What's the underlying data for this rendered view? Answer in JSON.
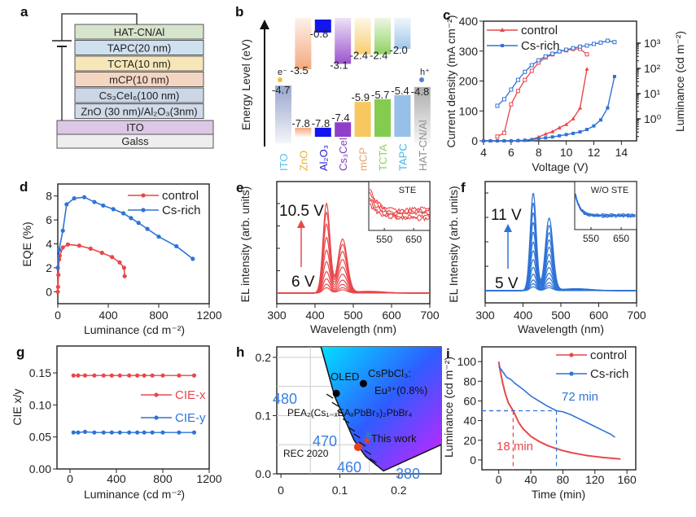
{
  "panel_labels": {
    "a": "a",
    "b": "b",
    "c": "c",
    "d": "d",
    "e": "e",
    "f": "f",
    "g": "g",
    "h": "h",
    "i": "i"
  },
  "colors": {
    "control": "#e8474a",
    "cs_rich": "#2f73d6",
    "wavelength_label": "#3a7fe0"
  },
  "device_stack": {
    "layers": [
      {
        "label": "HAT-CN/Al",
        "color": "#d7e4cc"
      },
      {
        "label": "TAPC(20 nm)",
        "color": "#cfe0ef"
      },
      {
        "label": "TCTA(10 nm)",
        "color": "#f6e6b8"
      },
      {
        "label": "mCP(10 nm)",
        "color": "#f4d5c2"
      },
      {
        "label": "Cs₃CeI₆(100 nm)",
        "color": "#cbd6e6"
      },
      {
        "label": "ZnO (30 nm)/Al₂O₃(3nm)",
        "color": "#d0dae8"
      }
    ],
    "substrate": [
      {
        "label": "ITO",
        "color": "#dcc8e6"
      },
      {
        "label": "Galss",
        "color": "#eeeeee"
      }
    ]
  },
  "energy_diagram": {
    "axis_title": "Energy Level (eV)",
    "electron_label": "e⁻",
    "hole_label": "h⁺",
    "materials": [
      {
        "name": "ITO",
        "lumo": null,
        "homo": -4.7,
        "homo_label": "-4.7",
        "bar_color": "#8d9cc8",
        "label_color": "#5bc0e8"
      },
      {
        "name": "ZnO",
        "lumo": -3.5,
        "lumo_label": "-3.5",
        "homo": -7.8,
        "homo_label": "-7.8",
        "bar_color": "#f2a070",
        "label_color": "#f0b020"
      },
      {
        "name": "Al₂O₃",
        "lumo": -0.8,
        "lumo_label": "-0.8",
        "homo": -7.8,
        "homo_label": "-7.8",
        "bar_color": "#1414ee",
        "label_color": "#2020d0"
      },
      {
        "name": "Cs₃CeI₆",
        "lumo": -3.1,
        "lumo_label": "-3.1",
        "homo": -7.4,
        "homo_label": "-7.4",
        "bar_color": "#9040c8",
        "label_color": "#8040c0"
      },
      {
        "name": "mCP",
        "lumo": -2.4,
        "lumo_label": "-2.4",
        "homo": -5.9,
        "homo_label": "-5.9",
        "bar_color": "#f8c860",
        "label_color": "#f0a060"
      },
      {
        "name": "TCTA",
        "lumo": -2.4,
        "lumo_label": "-2.4",
        "homo": -5.7,
        "homo_label": "-5.7",
        "bar_color": "#84cc50",
        "label_color": "#90d060"
      },
      {
        "name": "TAPC",
        "lumo": -2.0,
        "lumo_label": "-2.0",
        "homo": -5.4,
        "homo_label": "-5.4",
        "bar_color": "#96c0e6",
        "label_color": "#40b8e8"
      },
      {
        "name": "HAT-CN/Al",
        "lumo": null,
        "homo": -4.8,
        "homo_label": "-4.8",
        "bar_color": "#a4a4a4",
        "label_color": "#909090"
      }
    ]
  },
  "chart_data": [
    {
      "panel": "c",
      "type": "line",
      "xlabel": "Voltage (V)",
      "ylabel": "Current density (mA cm⁻²)",
      "y2label": "Luminance (cd m⁻²)",
      "xlim": [
        4,
        15.1
      ],
      "ylim": [
        0,
        400
      ],
      "y2lim_log10": [
        -0.87,
        3.87
      ],
      "y2scale": "log",
      "xticks": [
        4,
        6,
        8,
        10,
        12,
        14
      ],
      "yticks": [
        0,
        100,
        200,
        300,
        400
      ],
      "y2ticks": [
        "10⁰",
        "10¹",
        "10²",
        "10³"
      ],
      "legend": {
        "position": "top-left",
        "entries": [
          "control",
          "Cs-rich"
        ]
      },
      "series": [
        {
          "name": "control",
          "axis": "left",
          "marker": "triangle",
          "x": [
            4,
            4.5,
            5,
            5.5,
            6,
            6.5,
            7,
            7.5,
            8,
            8.5,
            9,
            9.5,
            10,
            10.5,
            11,
            11.5
          ],
          "y": [
            0,
            0,
            0,
            0,
            0,
            1,
            2,
            5,
            13,
            23,
            31,
            44,
            55,
            74,
            110,
            240
          ]
        },
        {
          "name": "Cs-rich",
          "axis": "left",
          "marker": "square",
          "x": [
            4,
            4.5,
            5,
            5.5,
            6,
            6.5,
            7,
            7.5,
            8,
            8.5,
            9,
            9.5,
            10,
            10.5,
            11,
            11.5,
            12,
            12.5,
            13,
            13.5
          ],
          "y": [
            0,
            0,
            0,
            0,
            0,
            1,
            2,
            4,
            8,
            10,
            13,
            17,
            21,
            25,
            30,
            38,
            50,
            70,
            110,
            215
          ]
        },
        {
          "name": "control",
          "axis": "right",
          "marker": "open-triangle",
          "x": [
            5,
            5.5,
            6,
            6.5,
            7,
            7.5,
            8,
            8.5,
            9,
            9.5,
            10,
            10.5,
            11,
            11.5
          ],
          "y": [
            0.2,
            0.28,
            3.8,
            12.7,
            35,
            80,
            170,
            270,
            360,
            470,
            520,
            590,
            590,
            360
          ]
        },
        {
          "name": "Cs-rich",
          "axis": "right",
          "marker": "open-square",
          "x": [
            5,
            5.5,
            6,
            6.5,
            7,
            7.5,
            8,
            8.5,
            9,
            9.5,
            10,
            10.5,
            11,
            11.5,
            12,
            12.5,
            13,
            13.5
          ],
          "y": [
            3.3,
            6,
            14.5,
            35,
            73,
            134,
            210,
            300,
            380,
            470,
            550,
            630,
            730,
            800,
            930,
            1050,
            1250,
            1100
          ]
        }
      ]
    },
    {
      "panel": "d",
      "type": "line",
      "xlabel": "Luminance (cd m⁻²)",
      "ylabel": "EQE (%)",
      "xlim": [
        0,
        1200
      ],
      "ylim": [
        -1,
        9
      ],
      "xticks": [
        0,
        400,
        800,
        1200
      ],
      "yticks": [
        0,
        2,
        4,
        6,
        8
      ],
      "legend": {
        "position": "top-right",
        "entries": [
          "control",
          "Cs-rich"
        ]
      },
      "series": [
        {
          "name": "control",
          "x": [
            0,
            2,
            5,
            10,
            15,
            40,
            80,
            170,
            260,
            350,
            430,
            490,
            525,
            530
          ],
          "y": [
            0,
            0.4,
            1.4,
            2.7,
            3.0,
            3.7,
            3.95,
            3.85,
            3.6,
            3.25,
            2.9,
            2.45,
            2.0,
            1.3
          ]
        },
        {
          "name": "Cs-rich",
          "x": [
            0,
            10,
            40,
            70,
            130,
            210,
            290,
            360,
            440,
            520,
            580,
            640,
            710,
            800,
            940,
            1070
          ],
          "y": [
            2,
            3.5,
            5.1,
            7.3,
            7.8,
            7.9,
            7.5,
            7.2,
            6.9,
            6.55,
            6.15,
            5.75,
            5.25,
            4.6,
            3.8,
            2.75
          ]
        }
      ]
    },
    {
      "panel": "e",
      "type": "line",
      "xlabel": "Wavelength (nm)",
      "ylabel": "EL intensity (arb. units)",
      "xlim": [
        300,
        700
      ],
      "xticks": [
        300,
        400,
        500,
        600,
        700
      ],
      "voltage_low": "6 V",
      "voltage_high": "10.5 V",
      "peak_wavelengths_nm": [
        430,
        472
      ],
      "second_peak_ratio": 0.6,
      "curve_peak_heights": [
        0.06,
        0.1,
        0.16,
        0.24,
        0.35,
        0.48,
        0.62,
        0.77,
        0.9,
        1.0
      ],
      "inset": {
        "title": "STE",
        "xticks": [
          550,
          650
        ],
        "xlim": [
          497,
          705
        ]
      }
    },
    {
      "panel": "f",
      "type": "line",
      "xlabel": "Wavelength (nm)",
      "ylabel": "EL Intensity (arb. units)",
      "xlim": [
        300,
        700
      ],
      "xticks": [
        300,
        400,
        500,
        600,
        700
      ],
      "voltage_low": "5 V",
      "voltage_high": "11 V",
      "peak_wavelengths_nm": [
        427,
        469
      ],
      "second_peak_ratio": 0.74,
      "curve_peak_heights": [
        0.04,
        0.07,
        0.11,
        0.17,
        0.24,
        0.32,
        0.41,
        0.5,
        0.6,
        0.7,
        0.8,
        0.9,
        1.0
      ],
      "inset": {
        "title": "W/O STE",
        "xticks": [
          550,
          650
        ],
        "xlim": [
          496,
          701
        ]
      }
    },
    {
      "panel": "g",
      "type": "line",
      "xlabel": "Luminance (cd m⁻²)",
      "ylabel": "CIE x/y",
      "xlim": [
        -112,
        1200
      ],
      "ylim": [
        0,
        0.192
      ],
      "xticks": [
        0,
        400,
        800,
        1200
      ],
      "yticks": [
        "0.00",
        "0.05",
        "0.10",
        "0.15"
      ],
      "legend": {
        "position": "right",
        "entries": [
          "CIE-x",
          "CIE-y"
        ]
      },
      "series": [
        {
          "name": "CIE-x",
          "x": [
            30,
            70,
            130,
            210,
            290,
            360,
            430,
            510,
            580,
            640,
            710,
            800,
            940,
            1070
          ],
          "y": [
            0.146,
            0.146,
            0.146,
            0.146,
            0.146,
            0.146,
            0.146,
            0.146,
            0.146,
            0.146,
            0.146,
            0.146,
            0.146,
            0.146
          ]
        },
        {
          "name": "CIE-y",
          "x": [
            30,
            70,
            130,
            210,
            290,
            360,
            430,
            510,
            580,
            640,
            710,
            800,
            940,
            1070
          ],
          "y": [
            0.057,
            0.057,
            0.058,
            0.057,
            0.057,
            0.057,
            0.057,
            0.057,
            0.057,
            0.057,
            0.057,
            0.057,
            0.057,
            0.057
          ]
        }
      ]
    },
    {
      "panel": "h",
      "type": "scatter",
      "xlim": [
        -0.007,
        0.272
      ],
      "ylim": [
        0,
        0.218
      ],
      "xticks": [
        "0",
        "0.1",
        "0.2"
      ],
      "yticks": [
        "0.0",
        "0.1",
        "0.2"
      ],
      "spectral_locus": [
        {
          "nm": "380",
          "x": 0.1741,
          "y": 0.005
        },
        {
          "nm": "460",
          "x": 0.144,
          "y": 0.0297
        },
        {
          "nm": "470",
          "x": 0.1241,
          "y": 0.0578
        },
        {
          "nm": "480",
          "x": 0.0913,
          "y": 0.1327
        },
        {
          "nm": "490",
          "x": 0.0454,
          "y": 0.295
        }
      ],
      "locus_labels": [
        "480",
        "470",
        "460",
        "380"
      ],
      "points": [
        {
          "label": "OLED",
          "x": 0.094,
          "y": 0.138,
          "color": "#000000"
        },
        {
          "label": "CsPbCl₃:",
          "label2": "Eu³⁺(0.8%)",
          "x": 0.14,
          "y": 0.155,
          "color": "#000000"
        },
        {
          "label": "PEA₂(Cs₁₋ₓEAₓPbBr₃)₂PbBr₄",
          "x": 0.146,
          "y": 0.066,
          "color": "#2f73d6"
        },
        {
          "label": "This work",
          "x": 0.146,
          "y": 0.057,
          "color": "#e8401a",
          "marker": "star"
        },
        {
          "label": "REC 2020",
          "x": 0.131,
          "y": 0.046,
          "color": "#e8401a"
        }
      ]
    },
    {
      "panel": "i",
      "type": "line",
      "xlabel": "Time (min)",
      "ylabel": "Luminance (cd m⁻²)",
      "xlim": [
        -21,
        171
      ],
      "ylim": [
        -10,
        115
      ],
      "xticks": [
        0,
        40,
        80,
        120,
        160
      ],
      "yticks": [
        0,
        20,
        40,
        60,
        80,
        100
      ],
      "legend": {
        "position": "top-right",
        "entries": [
          "control",
          "Cs-rich"
        ]
      },
      "annotations": [
        {
          "text": "18 min",
          "t50": 18,
          "color": "#e8474a"
        },
        {
          "text": "72 min",
          "t50": 72,
          "color": "#2f73d6"
        }
      ],
      "half_level": 50,
      "series": [
        {
          "name": "control",
          "x": [
            0,
            2,
            5,
            8,
            12,
            15,
            18,
            25,
            30,
            40,
            50,
            60,
            70,
            80,
            90,
            100,
            110,
            120,
            130,
            140,
            152
          ],
          "y": [
            100,
            90,
            78,
            68,
            58,
            54,
            50,
            38,
            32,
            24,
            19,
            15,
            12,
            9.5,
            7.5,
            6,
            4.5,
            3.5,
            2.5,
            1.8,
            1
          ]
        },
        {
          "name": "Cs-rich",
          "x": [
            0,
            3,
            10,
            15,
            20,
            30,
            40,
            50,
            60,
            72,
            80,
            90,
            100,
            110,
            120,
            130,
            140,
            145
          ],
          "y": [
            95,
            92,
            84,
            82,
            78,
            72,
            65,
            60,
            55,
            50,
            49,
            46,
            42,
            38,
            34,
            30,
            26,
            23
          ]
        }
      ]
    }
  ]
}
